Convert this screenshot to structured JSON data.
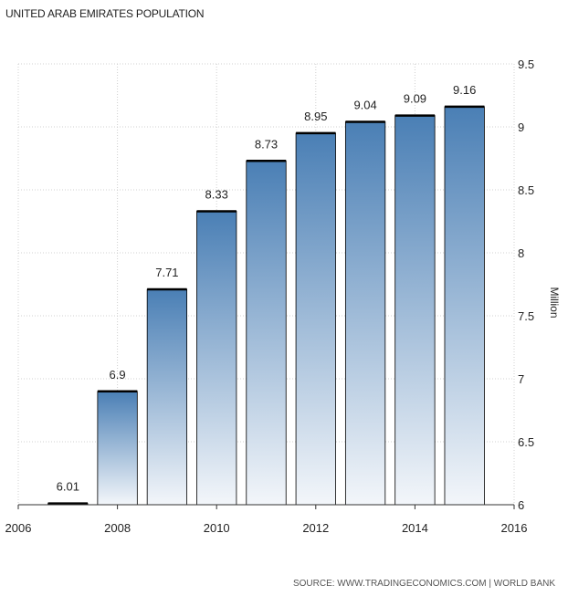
{
  "chart_data": {
    "type": "bar",
    "title": "UNITED ARAB EMIRATES POPULATION",
    "source": "SOURCE: WWW.TRADINGECONOMICS.COM | WORLD BANK",
    "ylabel": "Million",
    "xlabel": "",
    "categories": [
      "2007",
      "2008",
      "2009",
      "2010",
      "2011",
      "2012",
      "2013",
      "2014",
      "2015"
    ],
    "values": [
      6.01,
      6.9,
      7.71,
      8.33,
      8.73,
      8.95,
      9.04,
      9.09,
      9.16
    ],
    "value_labels": [
      "6.01",
      "6.9",
      "7.71",
      "8.33",
      "8.73",
      "8.95",
      "9.04",
      "9.09",
      "9.16"
    ],
    "x_ticks": [
      "2006",
      "2008",
      "2010",
      "2012",
      "2014",
      "2016"
    ],
    "xlim": [
      2006,
      2016
    ],
    "y_ticks": [
      "6",
      "6.5",
      "7",
      "7.5",
      "8",
      "8.5",
      "9",
      "9.5"
    ],
    "ylim": [
      6,
      9.5
    ],
    "grid": true,
    "y_axis_side": "right",
    "bar_gradient": {
      "top": "#4a7fb5",
      "bottom": "#f3f6fa"
    },
    "bar_top_color": "#000000"
  }
}
